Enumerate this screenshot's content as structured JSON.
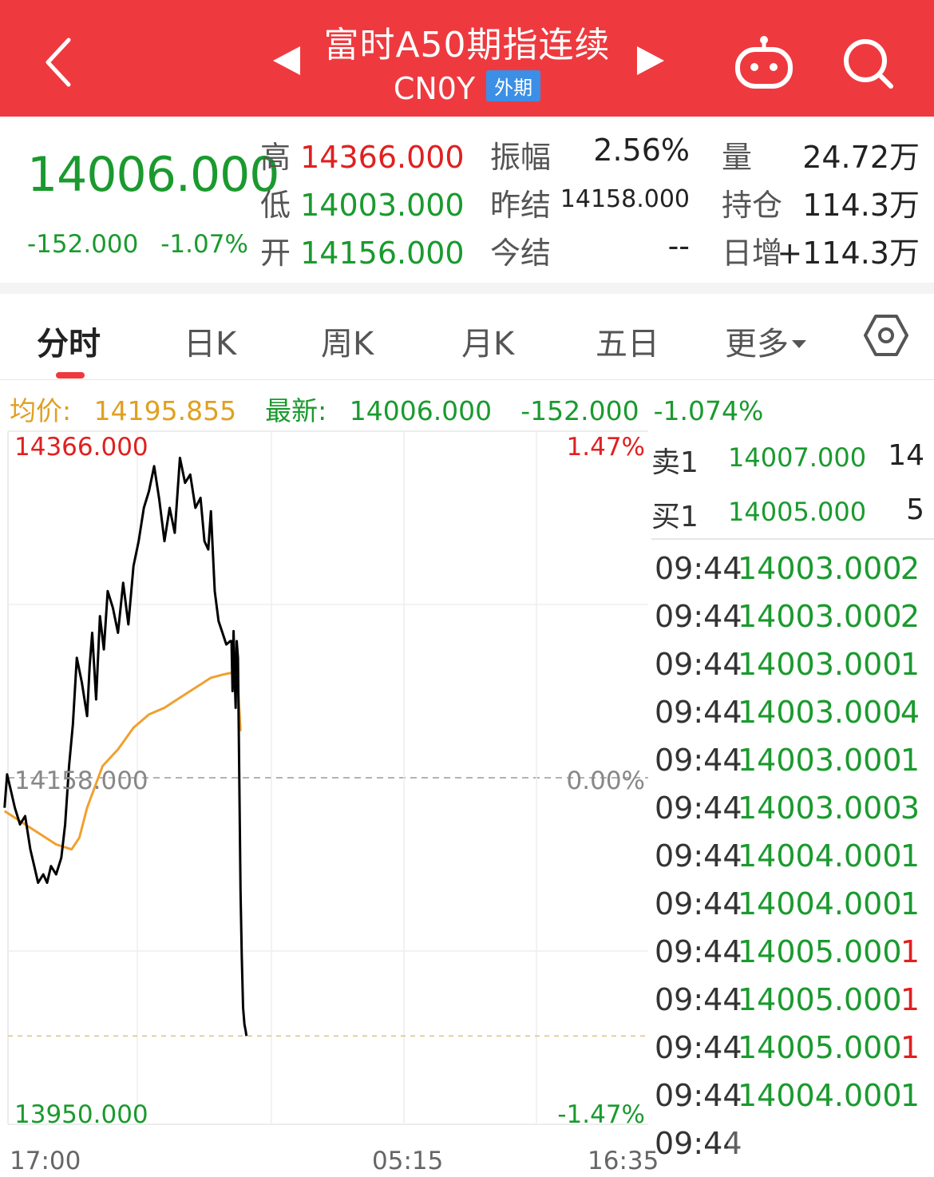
{
  "header": {
    "title": "富时A50期指连续",
    "code": "CN0Y",
    "badge": "外期",
    "icons": [
      "back-chevron-icon",
      "prev-triangle-icon",
      "next-triangle-icon",
      "robot-icon",
      "search-icon"
    ],
    "bg_color": "#ee3a3f"
  },
  "quote": {
    "price": "14006.000",
    "change": "-152.000",
    "change_pct": "-1.07%",
    "high_label": "高",
    "high": "14366.000",
    "low_label": "低",
    "low": "14003.000",
    "open_label": "开",
    "open": "14156.000",
    "amp_label": "振幅",
    "amp": "2.56%",
    "prev_settle_label": "昨结",
    "prev_settle": "14158.000",
    "settle_label": "今结",
    "settle": "--",
    "vol_label": "量",
    "vol": "24.72万",
    "oi_label": "持仓",
    "oi": "114.3万",
    "oi_chg_label": "日增",
    "oi_chg": "+114.3万"
  },
  "tabs": {
    "items": [
      "分时",
      "日K",
      "周K",
      "月K",
      "五日",
      "更多"
    ],
    "active": "分时",
    "settings_icon": "gear-hexagon-icon"
  },
  "infoline": {
    "avg_label": "均价:",
    "avg": "14195.855",
    "latest_label": "最新:",
    "latest": "14006.000",
    "chg": "-152.000",
    "chg_pct": "-1.074%"
  },
  "chart_data": {
    "type": "line",
    "title": "",
    "y_labels": {
      "top": "14366.000",
      "mid": "14158.000",
      "bottom": "13950.000"
    },
    "pct_labels": {
      "top": "1.47%",
      "mid": "0.00%",
      "bottom": "-1.47%"
    },
    "x_labels": [
      "17:00",
      "05:15",
      "16:35"
    ],
    "ylim": [
      13950,
      14366
    ],
    "reference": 14158,
    "session_minutes": 1415,
    "series": [
      {
        "role": "price",
        "color": "#000000",
        "x": [
          0,
          10,
          25,
          40,
          60,
          80,
          100,
          115,
          130,
          150,
          165,
          180,
          200,
          220,
          235,
          250,
          265,
          280,
          300,
          320,
          330,
          340,
          355,
          370,
          385,
          400,
          420,
          440,
          460,
          480,
          500,
          520,
          540,
          560,
          580,
          600,
          620,
          640,
          660,
          680,
          700,
          720,
          740,
          760,
          775,
          790,
          800,
          815,
          830,
          845,
          860,
          875,
          880,
          884,
          888,
          892,
          896,
          900,
          905,
          910,
          915,
          920,
          925,
          930,
          935,
          938
        ],
        "y": [
          14140,
          14160,
          14150,
          14140,
          14130,
          14135,
          14115,
          14105,
          14095,
          14100,
          14095,
          14105,
          14100,
          14110,
          14130,
          14165,
          14190,
          14230,
          14215,
          14195,
          14225,
          14245,
          14205,
          14255,
          14235,
          14270,
          14260,
          14245,
          14275,
          14250,
          14285,
          14300,
          14320,
          14330,
          14345,
          14325,
          14300,
          14320,
          14305,
          14350,
          14335,
          14340,
          14320,
          14326,
          14300,
          14295,
          14318,
          14270,
          14252,
          14245,
          14238,
          14240,
          14240,
          14210,
          14246,
          14220,
          14200,
          14240,
          14230,
          14160,
          14090,
          14050,
          14020,
          14010,
          14006,
          14003
        ]
      },
      {
        "role": "average",
        "color": "#f0a030",
        "x": [
          0,
          100,
          200,
          260,
          290,
          320,
          380,
          440,
          500,
          560,
          620,
          680,
          740,
          800,
          850,
          880,
          895,
          905,
          915
        ],
        "y": [
          14138,
          14128,
          14118,
          14115,
          14122,
          14140,
          14165,
          14175,
          14188,
          14196,
          14200,
          14206,
          14212,
          14218,
          14220,
          14221,
          14221,
          14212,
          14186
        ]
      }
    ],
    "grid": true
  },
  "orderbook": {
    "asks": [
      {
        "label": "卖1",
        "price": "14007.000",
        "vol": "14"
      }
    ],
    "bids": [
      {
        "label": "买1",
        "price": "14005.000",
        "vol": "5"
      }
    ]
  },
  "ticks": [
    {
      "time": "09:44",
      "price": "14003.000",
      "vol": "2",
      "vol_color": "#1a9a2e"
    },
    {
      "time": "09:44",
      "price": "14003.000",
      "vol": "2",
      "vol_color": "#1a9a2e"
    },
    {
      "time": "09:44",
      "price": "14003.000",
      "vol": "1",
      "vol_color": "#1a9a2e"
    },
    {
      "time": "09:44",
      "price": "14003.000",
      "vol": "4",
      "vol_color": "#1a9a2e"
    },
    {
      "time": "09:44",
      "price": "14003.000",
      "vol": "1",
      "vol_color": "#1a9a2e"
    },
    {
      "time": "09:44",
      "price": "14003.000",
      "vol": "3",
      "vol_color": "#1a9a2e"
    },
    {
      "time": "09:44",
      "price": "14004.000",
      "vol": "1",
      "vol_color": "#1a9a2e"
    },
    {
      "time": "09:44",
      "price": "14004.000",
      "vol": "1",
      "vol_color": "#1a9a2e"
    },
    {
      "time": "09:44",
      "price": "14005.000",
      "vol": "1",
      "vol_color": "#e02020"
    },
    {
      "time": "09:44",
      "price": "14005.000",
      "vol": "1",
      "vol_color": "#e02020"
    },
    {
      "time": "09:44",
      "price": "14005.000",
      "vol": "1",
      "vol_color": "#e02020"
    },
    {
      "time": "09:44",
      "price": "14004.000",
      "vol": "1",
      "vol_color": "#1a9a2e"
    },
    {
      "time": "09:44",
      "price": "",
      "vol": "",
      "vol_color": "#e02020"
    }
  ]
}
